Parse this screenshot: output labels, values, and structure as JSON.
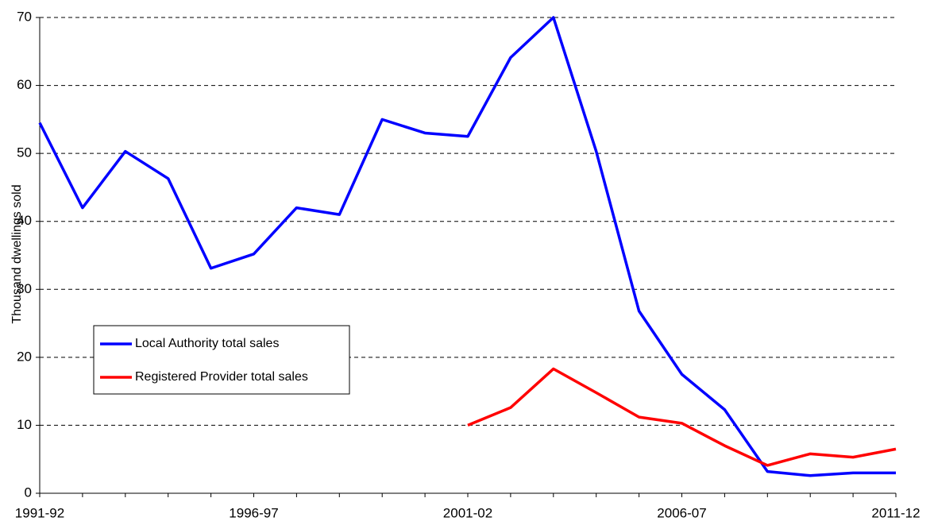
{
  "chart_data": {
    "type": "line",
    "y_label": "Thousand dwellings sold",
    "categories": [
      "1991-92",
      null,
      null,
      null,
      null,
      "1996-97",
      null,
      null,
      null,
      null,
      "2001-02",
      null,
      null,
      null,
      null,
      "2006-07",
      null,
      null,
      null,
      null,
      "2011-12"
    ],
    "series": [
      {
        "name": "Local Authority total sales",
        "color": "#0000ff",
        "values": [
          54.5,
          42,
          50.3,
          46.3,
          33.1,
          35.2,
          42,
          41,
          55,
          53,
          52.5,
          64.1,
          70,
          50.3,
          26.8,
          17.5,
          12.3,
          3.2,
          2.6,
          3,
          3
        ]
      },
      {
        "name": "Registered Provider total sales",
        "color": "#ff0000",
        "values": [
          null,
          null,
          null,
          null,
          null,
          null,
          null,
          null,
          null,
          null,
          10,
          12.6,
          18.3,
          14.8,
          11.2,
          10.3,
          7,
          4.1,
          5.8,
          5.3,
          6.5
        ]
      }
    ],
    "ylim": [
      0,
      70
    ],
    "yticks": [
      0,
      10,
      20,
      30,
      40,
      50,
      60,
      70
    ],
    "grid": true
  }
}
